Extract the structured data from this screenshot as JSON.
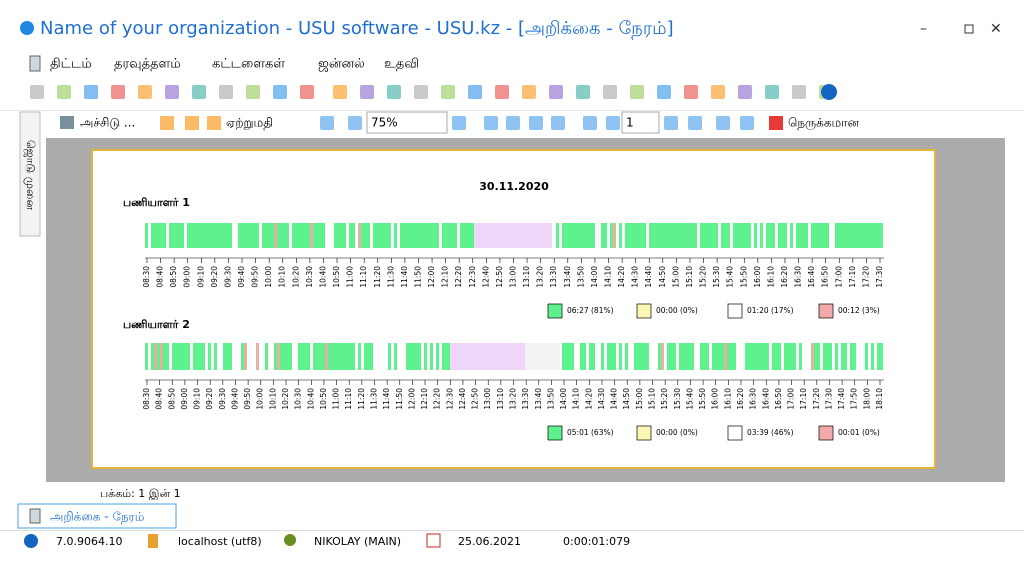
{
  "window": {
    "title": "Name of your organization - USU software - USU.kz - [அறிக்கை - நேரம்]"
  },
  "menu": [
    "திட்டம்",
    "தரவுத்தளம்",
    "கட்டளைகள்",
    "ஜன்னல்",
    "உதவி"
  ],
  "toolbar": {
    "print": "அச்சிடு ...",
    "export": "ஏற்றுமதி",
    "zoom": "75%",
    "page": "1",
    "close": "நெருக்கமான"
  },
  "side_tab": "ஜொடு முனை",
  "report": {
    "date": "30.11.2020",
    "employees": [
      {
        "name": "பணியாளர் 1",
        "ticks": [
          "08:30",
          "08:40",
          "08:50",
          "09:00",
          "09:10",
          "09:20",
          "09:30",
          "09:40",
          "09:50",
          "10:00",
          "10:10",
          "10:20",
          "10:30",
          "10:40",
          "10:50",
          "11:00",
          "11:10",
          "11:20",
          "11:30",
          "11:40",
          "11:50",
          "12:00",
          "12:10",
          "12:20",
          "12:30",
          "12:40",
          "12:50",
          "13:00",
          "13:10",
          "13:20",
          "13:30",
          "13:40",
          "13:50",
          "14:00",
          "14:10",
          "14:20",
          "14:30",
          "14:40",
          "14:50",
          "15:00",
          "15:10",
          "15:20",
          "15:30",
          "15:40",
          "15:50",
          "16:00",
          "16:10",
          "16:20",
          "16:30",
          "16:40",
          "16:50",
          "17:00",
          "17:10",
          "17:20",
          "17:30"
        ],
        "legend": [
          "06:27 (81%)",
          "00:00 (0%)",
          "01:20 (17%)",
          "00:12 (3%)"
        ]
      },
      {
        "name": "பணியாளர் 2",
        "ticks": [
          "08:30",
          "08:40",
          "08:50",
          "09:00",
          "09:10",
          "09:20",
          "09:30",
          "09:40",
          "09:50",
          "10:00",
          "10:10",
          "10:20",
          "10:30",
          "10:40",
          "10:50",
          "11:00",
          "11:10",
          "11:20",
          "11:30",
          "11:40",
          "11:50",
          "12:00",
          "12:10",
          "12:20",
          "12:30",
          "12:40",
          "12:50",
          "13:00",
          "13:10",
          "13:20",
          "13:30",
          "13:40",
          "13:50",
          "14:00",
          "14:10",
          "14:20",
          "14:30",
          "14:40",
          "14:50",
          "15:00",
          "15:10",
          "15:20",
          "15:30",
          "15:40",
          "15:50",
          "16:00",
          "16:10",
          "16:20",
          "16:30",
          "16:40",
          "16:50",
          "17:00",
          "17:10",
          "17:20",
          "17:30",
          "17:40",
          "17:50",
          "18:00",
          "18:10"
        ],
        "legend": [
          "05:01 (63%)",
          "00:00 (0%)",
          "03:39 (46%)",
          "00:01 (0%)"
        ]
      }
    ]
  },
  "page_info": "பக்கம்: 1 இன் 1",
  "tab": "அறிக்கை - நேரம்",
  "status": [
    "7.0.9064.10",
    "localhost (utf8)",
    "NIKOLAY (MAIN)",
    "25.06.2021",
    "0:00:01:079"
  ]
}
